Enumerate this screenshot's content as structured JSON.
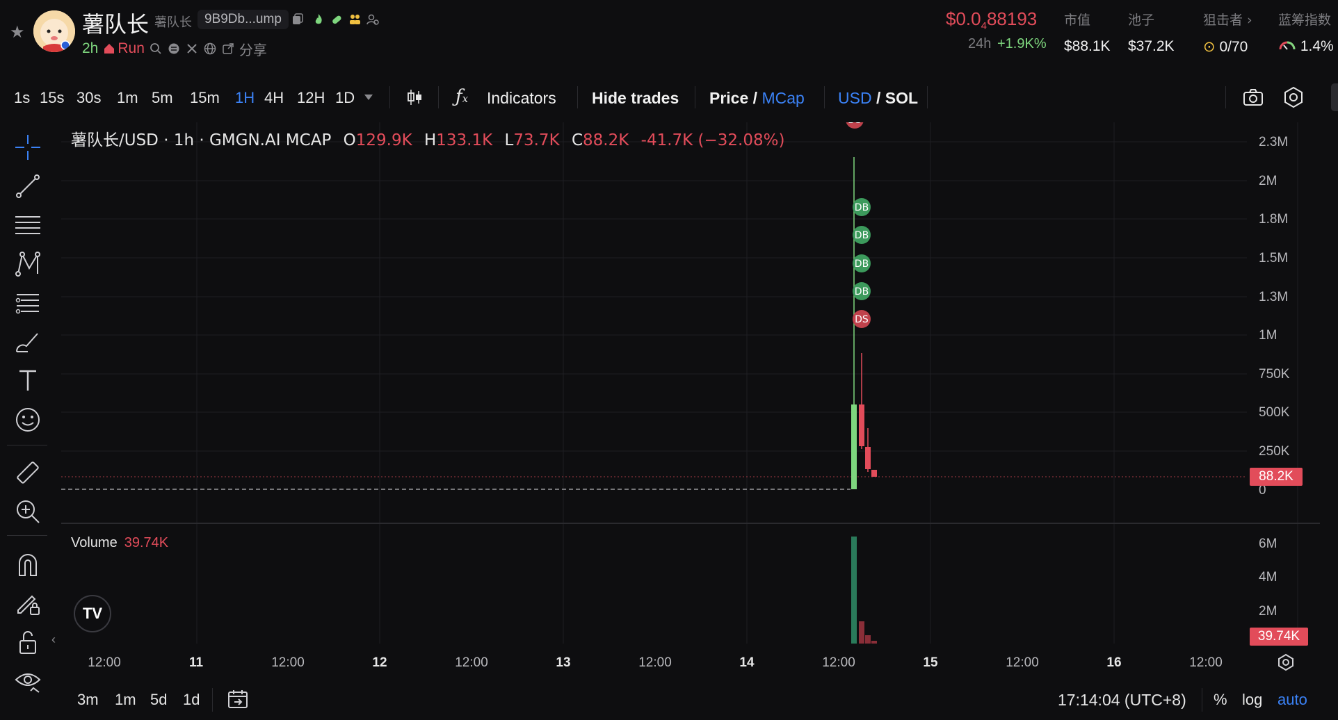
{
  "header": {
    "token_name": "薯队长",
    "token_subname": "薯队长",
    "address_short": "9B9Db...ump",
    "age": "2h",
    "run_label": "Run",
    "share_label": "分享",
    "price": "$0.0",
    "price_zeros": "4",
    "price_rest": "88193",
    "change_label": "24h",
    "change_value": "+1.9K%",
    "stats": [
      {
        "label": "市值",
        "value": "$88.1K"
      },
      {
        "label": "池子",
        "value": "$37.2K"
      },
      {
        "label": "狙击者 ›",
        "value": "0/70"
      },
      {
        "label": "蓝筹指数",
        "value": "1.4%"
      }
    ],
    "colors": {
      "down": "#e24c5a",
      "up": "#7ed67e",
      "accent": "#3b82f6"
    }
  },
  "toolbar": {
    "timeframes": [
      "1s",
      "15s",
      "30s",
      "1m",
      "5m",
      "15m",
      "1H",
      "4H",
      "12H",
      "1D"
    ],
    "active_timeframe": "1H",
    "indicators_label": "Indicators",
    "hide_trades_label": "Hide trades",
    "price_label": "Price",
    "mcap_label": "MCap",
    "usd_label": "USD",
    "sol_label": "SOL",
    "slash": "/"
  },
  "chart": {
    "symbol": "薯队长/USD · 1h · GMGN.AI MCAP",
    "o_label": "O",
    "o_val": "129.9K",
    "h_label": "H",
    "h_val": "133.1K",
    "l_label": "L",
    "l_val": "73.7K",
    "c_label": "C",
    "c_val": "88.2K",
    "change": "-41.7K (−32.08%)",
    "price_axis": [
      "2.3M",
      "2M",
      "1.8M",
      "1.5M",
      "1.3M",
      "1M",
      "750K",
      "500K",
      "250K",
      "0"
    ],
    "current_price_tag": "88.2K",
    "volume_label": "Volume",
    "volume_value": "39.74K",
    "volume_axis": [
      "6M",
      "4M",
      "2M"
    ],
    "volume_tag": "39.74K",
    "time_axis": [
      "12:00",
      "11",
      "12:00",
      "12",
      "12:00",
      "13",
      "12:00",
      "14",
      "12:00",
      "15",
      "12:00",
      "16",
      "12:00"
    ],
    "markers": [
      "DS",
      "DB",
      "DB",
      "DB",
      "DB",
      "DS"
    ],
    "tv_logo": "TV"
  },
  "bottom": {
    "ranges": [
      "3m",
      "1m",
      "5d",
      "1d"
    ],
    "clock": "17:14:04 (UTC+8)",
    "percent_label": "%",
    "log_label": "log",
    "auto_label": "auto"
  }
}
